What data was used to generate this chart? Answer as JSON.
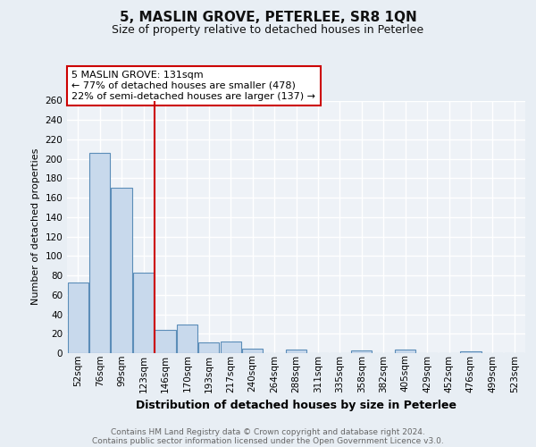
{
  "title": "5, MASLIN GROVE, PETERLEE, SR8 1QN",
  "subtitle": "Size of property relative to detached houses in Peterlee",
  "xlabel": "Distribution of detached houses by size in Peterlee",
  "ylabel": "Number of detached properties",
  "footer_line1": "Contains HM Land Registry data © Crown copyright and database right 2024.",
  "footer_line2": "Contains public sector information licensed under the Open Government Licence v3.0.",
  "categories": [
    "52sqm",
    "76sqm",
    "99sqm",
    "123sqm",
    "146sqm",
    "170sqm",
    "193sqm",
    "217sqm",
    "240sqm",
    "264sqm",
    "288sqm",
    "311sqm",
    "335sqm",
    "358sqm",
    "382sqm",
    "405sqm",
    "429sqm",
    "452sqm",
    "476sqm",
    "499sqm",
    "523sqm"
  ],
  "values": [
    73,
    206,
    170,
    83,
    24,
    29,
    11,
    12,
    5,
    0,
    4,
    0,
    0,
    3,
    0,
    4,
    0,
    0,
    2,
    0,
    0
  ],
  "bar_color": "#c8d9ec",
  "bar_edge_color": "#5b8db8",
  "vline_x": 3.5,
  "vline_color": "#cc0000",
  "ylim": [
    0,
    260
  ],
  "yticks": [
    0,
    20,
    40,
    60,
    80,
    100,
    120,
    140,
    160,
    180,
    200,
    220,
    240,
    260
  ],
  "annotation_title": "5 MASLIN GROVE: 131sqm",
  "annotation_line1": "← 77% of detached houses are smaller (478)",
  "annotation_line2": "22% of semi-detached houses are larger (137) →",
  "annotation_box_color": "#ffffff",
  "annotation_box_edge": "#cc0000",
  "bg_color": "#e8eef4",
  "plot_bg_color": "#eef2f7",
  "grid_color": "#ffffff",
  "title_fontsize": 11,
  "subtitle_fontsize": 9,
  "ylabel_fontsize": 8,
  "xlabel_fontsize": 9,
  "tick_fontsize": 7.5,
  "ann_fontsize": 8,
  "footer_fontsize": 6.5
}
